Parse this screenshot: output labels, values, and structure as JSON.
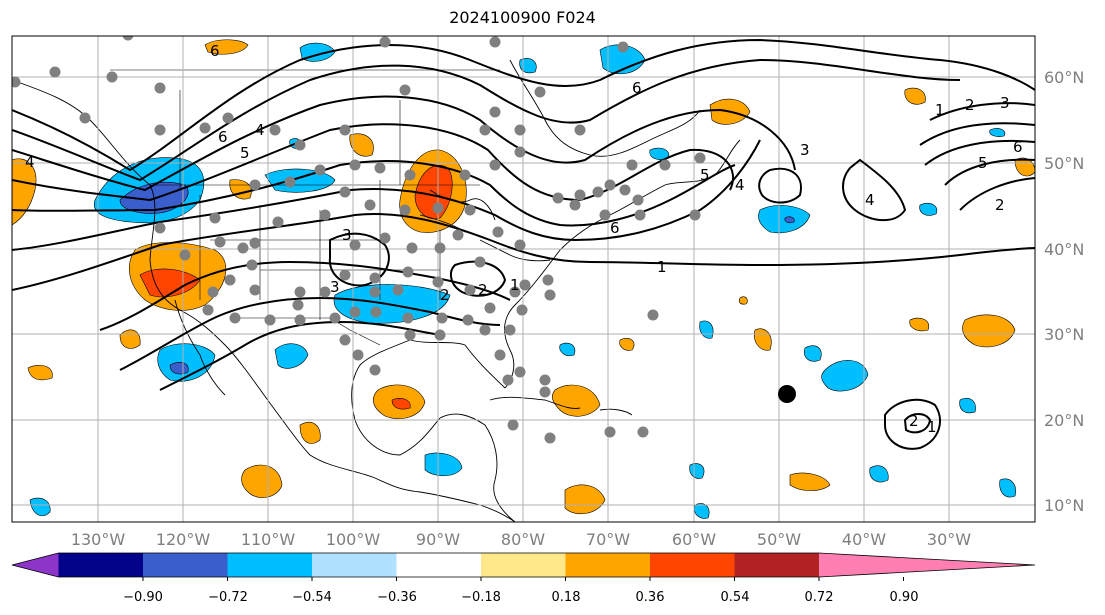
{
  "title": "2024100900 F024",
  "lat_labels": [
    "60°N",
    "50°N",
    "40°N",
    "30°N",
    "20°N",
    "10°N"
  ],
  "lon_labels": [
    "130°W",
    "120°W",
    "110°W",
    "100°W",
    "90°W",
    "80°W",
    "70°W",
    "60°W",
    "50°W",
    "40°W",
    "30°W"
  ],
  "colorbar": {
    "colors": [
      "#8e35c9",
      "#02038a",
      "#3a5fcd",
      "#00bfff",
      "#b0e2ff",
      "#ffffff",
      "#ffe889",
      "#ffa500",
      "#ff4500",
      "#b22222",
      "#ff7fb2"
    ],
    "tick_labels": [
      "−0.90",
      "−0.72",
      "−0.54",
      "−0.36",
      "−0.18",
      "0.18",
      "0.36",
      "0.54",
      "0.72",
      "0.90"
    ]
  },
  "contour_labels": [
    "6",
    "6",
    "5",
    "4",
    "4",
    "3",
    "3",
    "2",
    "1",
    "6",
    "6",
    "5",
    "4",
    "3",
    "2",
    "1",
    "1",
    "2",
    "3",
    "6",
    "5",
    "4",
    "2",
    "1",
    "2"
  ],
  "colors": {
    "gridline": "#b0b0b0",
    "station": "#808080",
    "contour": "#000000",
    "coast": "#000000"
  }
}
